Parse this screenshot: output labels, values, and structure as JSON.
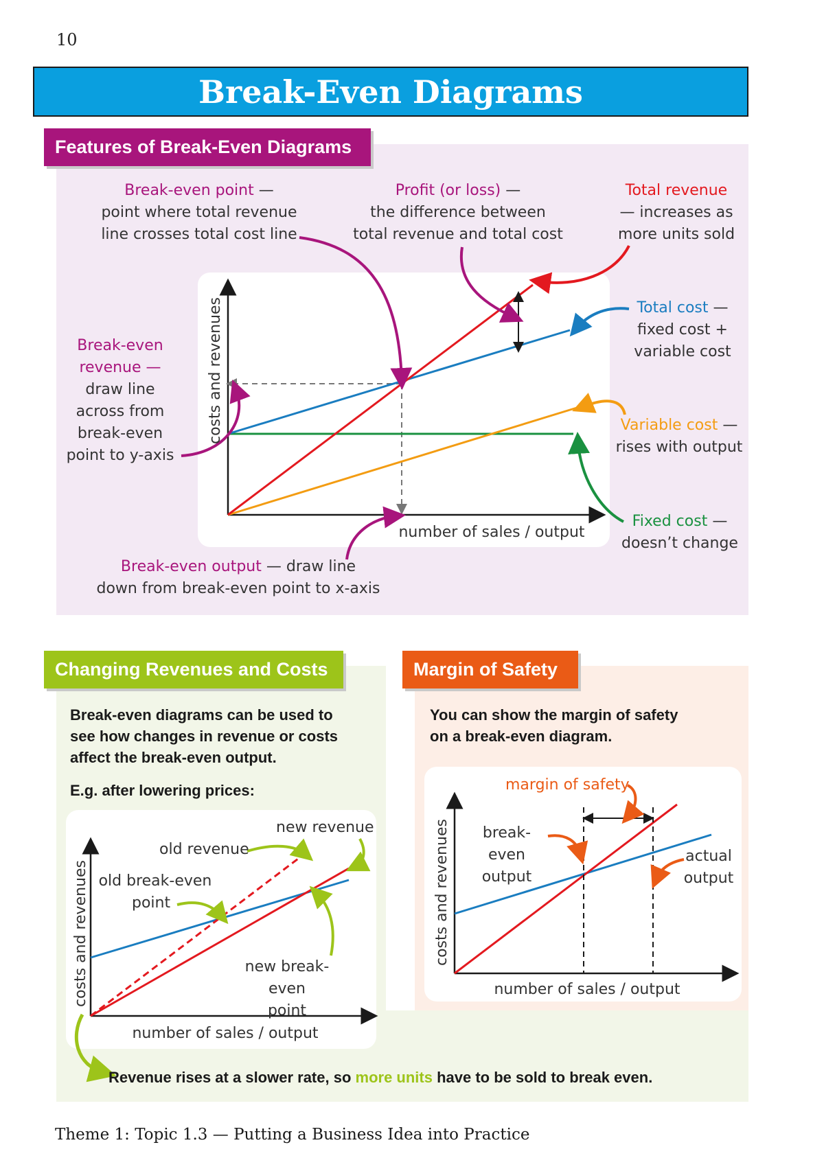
{
  "page_number": "10",
  "title": "Break-Even Diagrams",
  "features": {
    "heading": "Features of Break-Even Diagrams",
    "break_even_point": {
      "term": "Break-even point",
      "line1": "point where total revenue",
      "line2": "line crosses total cost line"
    },
    "profit": {
      "term": "Profit (or loss)",
      "line1": "the difference between",
      "line2": "total revenue and total cost"
    },
    "total_revenue": {
      "term": "Total revenue",
      "line1": "— increases as",
      "line2": "more units sold"
    },
    "total_cost": {
      "term": "Total cost",
      "line1": "fixed cost +",
      "line2": "variable cost"
    },
    "break_even_revenue": {
      "term1": "Break-even",
      "term2": "revenue —",
      "lines": [
        "draw line",
        "across from",
        "break-even",
        "point to y-axis"
      ]
    },
    "variable_cost": {
      "term": "Variable cost",
      "line1": "rises with output"
    },
    "fixed_cost": {
      "term": "Fixed cost",
      "line1": "doesn’t change"
    },
    "break_even_output": {
      "term": "Break-even output",
      "line1": "draw line",
      "line2": "down from break-even point to x-axis"
    },
    "dash": " —",
    "y_axis_label": "costs and revenues",
    "x_axis_label": "number of sales / output"
  },
  "changing": {
    "heading": "Changing Revenues and Costs",
    "intro": [
      "Break-even diagrams can be used to",
      "see how changes in revenue or costs",
      "affect the break-even output."
    ],
    "example": "E.g. after lowering prices:",
    "old_revenue": "old revenue",
    "new_revenue": "new revenue",
    "old_be_1": "old break-even",
    "old_be_2": "point",
    "new_be_1": "new break-even",
    "new_be_2": "point",
    "y_axis_label": "costs and revenues",
    "x_axis_label": "number of sales / output",
    "conclusion_pre": "Revenue rises at a slower rate, so ",
    "conclusion_highlight": "more units",
    "conclusion_post": " have to be sold to break even."
  },
  "margin": {
    "heading": "Margin of Safety",
    "intro": [
      "You can show the margin of safety",
      "on a break-even diagram."
    ],
    "margin_label": "margin of safety",
    "be_output_1": "break-even",
    "be_output_2": "output",
    "actual_1": "actual",
    "actual_2": "output",
    "y_axis_label": "costs and revenues",
    "x_axis_label": "number of sales / output"
  },
  "footer": "Theme 1: Topic 1.3 — Putting a Business Idea into Practice",
  "colors": {
    "revenue": "#e3191f",
    "total_cost": "#1a7dc0",
    "fixed_cost": "#1a9140",
    "variable_cost": "#f39c12",
    "purple": "#a8157c",
    "green_tag": "#9dc41a",
    "orange_tag": "#ea5b16",
    "title_blue": "#0a9fdf"
  }
}
